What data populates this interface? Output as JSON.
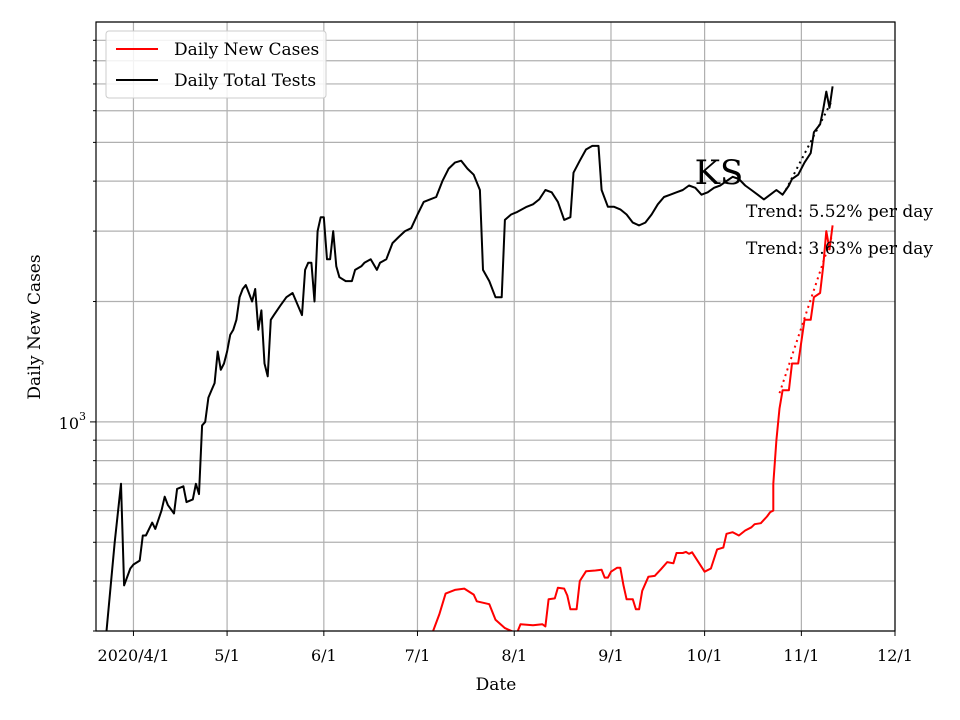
{
  "chart_data": {
    "type": "line",
    "title": "",
    "xlabel": "Date",
    "ylabel": "Daily New Cases",
    "y_scale": "log",
    "ylim": [
      300,
      10000
    ],
    "xlim": [
      "2020-03-20",
      "2020-12-01"
    ],
    "grid": true,
    "legend_position": "upper left",
    "x_tick_labels": [
      {
        "date": "2020-04-01",
        "label": "2020/4/1"
      },
      {
        "date": "2020-05-01",
        "label": "5/1"
      },
      {
        "date": "2020-06-01",
        "label": "6/1"
      },
      {
        "date": "2020-07-01",
        "label": "7/1"
      },
      {
        "date": "2020-08-01",
        "label": "8/1"
      },
      {
        "date": "2020-09-01",
        "label": "9/1"
      },
      {
        "date": "2020-10-01",
        "label": "10/1"
      },
      {
        "date": "2020-11-01",
        "label": "11/1"
      },
      {
        "date": "2020-12-01",
        "label": "12/1"
      }
    ],
    "y_major_tick": {
      "value": 1000,
      "label_base": "10",
      "label_exp": "3"
    },
    "series": [
      {
        "name": "Daily New Cases",
        "color": "#ff0000",
        "points": [
          [
            "2020-07-06",
            300
          ],
          [
            "2020-07-08",
            330
          ],
          [
            "2020-07-10",
            372
          ],
          [
            "2020-07-13",
            380
          ],
          [
            "2020-07-16",
            383
          ],
          [
            "2020-07-19",
            370
          ],
          [
            "2020-07-20",
            356
          ],
          [
            "2020-07-24",
            350
          ],
          [
            "2020-07-26",
            320
          ],
          [
            "2020-07-29",
            305
          ],
          [
            "2020-08-01",
            298
          ],
          [
            "2020-08-02",
            298
          ],
          [
            "2020-08-03",
            312
          ],
          [
            "2020-08-07",
            310
          ],
          [
            "2020-08-10",
            312
          ],
          [
            "2020-08-11",
            308
          ],
          [
            "2020-08-12",
            360
          ],
          [
            "2020-08-14",
            362
          ],
          [
            "2020-08-15",
            385
          ],
          [
            "2020-08-17",
            383
          ],
          [
            "2020-08-18",
            368
          ],
          [
            "2020-08-19",
            340
          ],
          [
            "2020-08-21",
            340
          ],
          [
            "2020-08-22",
            400
          ],
          [
            "2020-08-24",
            423
          ],
          [
            "2020-08-27",
            425
          ],
          [
            "2020-08-29",
            427
          ],
          [
            "2020-08-30",
            408
          ],
          [
            "2020-08-31",
            408
          ],
          [
            "2020-09-01",
            422
          ],
          [
            "2020-09-03",
            432
          ],
          [
            "2020-09-04",
            432
          ],
          [
            "2020-09-05",
            390
          ],
          [
            "2020-09-06",
            360
          ],
          [
            "2020-09-08",
            360
          ],
          [
            "2020-09-09",
            340
          ],
          [
            "2020-09-10",
            340
          ],
          [
            "2020-09-11",
            378
          ],
          [
            "2020-09-13",
            410
          ],
          [
            "2020-09-15",
            412
          ],
          [
            "2020-09-17",
            428
          ],
          [
            "2020-09-19",
            446
          ],
          [
            "2020-09-21",
            443
          ],
          [
            "2020-09-22",
            470
          ],
          [
            "2020-09-24",
            470
          ],
          [
            "2020-09-25",
            473
          ],
          [
            "2020-09-26",
            468
          ],
          [
            "2020-09-27",
            472
          ],
          [
            "2020-10-01",
            422
          ],
          [
            "2020-10-03",
            430
          ],
          [
            "2020-10-05",
            480
          ],
          [
            "2020-10-07",
            485
          ],
          [
            "2020-10-08",
            525
          ],
          [
            "2020-10-10",
            530
          ],
          [
            "2020-10-12",
            520
          ],
          [
            "2020-10-14",
            535
          ],
          [
            "2020-10-16",
            545
          ],
          [
            "2020-10-17",
            555
          ],
          [
            "2020-10-19",
            558
          ],
          [
            "2020-10-21",
            580
          ],
          [
            "2020-10-22",
            595
          ],
          [
            "2020-10-23",
            600
          ],
          [
            "2020-10-23",
            700
          ],
          [
            "2020-10-24",
            900
          ],
          [
            "2020-10-25",
            1080
          ],
          [
            "2020-10-26",
            1200
          ],
          [
            "2020-10-28",
            1200
          ],
          [
            "2020-10-29",
            1400
          ],
          [
            "2020-10-31",
            1400
          ],
          [
            "2020-11-02",
            1800
          ],
          [
            "2020-11-04",
            1800
          ],
          [
            "2020-11-05",
            2050
          ],
          [
            "2020-11-07",
            2100
          ],
          [
            "2020-11-08",
            2450
          ],
          [
            "2020-11-09",
            3000
          ],
          [
            "2020-11-10",
            2700
          ],
          [
            "2020-11-11",
            3100
          ]
        ]
      },
      {
        "name": "Daily Total Tests",
        "color": "#000000",
        "points": [
          [
            "2020-03-23",
            280
          ],
          [
            "2020-03-26",
            500
          ],
          [
            "2020-03-28",
            700
          ],
          [
            "2020-03-29",
            390
          ],
          [
            "2020-03-31",
            430
          ],
          [
            "2020-04-01",
            440
          ],
          [
            "2020-04-03",
            450
          ],
          [
            "2020-04-04",
            520
          ],
          [
            "2020-04-05",
            520
          ],
          [
            "2020-04-07",
            560
          ],
          [
            "2020-04-08",
            540
          ],
          [
            "2020-04-10",
            600
          ],
          [
            "2020-04-11",
            650
          ],
          [
            "2020-04-12",
            620
          ],
          [
            "2020-04-14",
            590
          ],
          [
            "2020-04-15",
            680
          ],
          [
            "2020-04-17",
            690
          ],
          [
            "2020-04-18",
            630
          ],
          [
            "2020-04-20",
            640
          ],
          [
            "2020-04-21",
            700
          ],
          [
            "2020-04-22",
            660
          ],
          [
            "2020-04-23",
            980
          ],
          [
            "2020-04-24",
            1000
          ],
          [
            "2020-04-25",
            1150
          ],
          [
            "2020-04-26",
            1200
          ],
          [
            "2020-04-27",
            1250
          ],
          [
            "2020-04-28",
            1500
          ],
          [
            "2020-04-29",
            1350
          ],
          [
            "2020-04-30",
            1400
          ],
          [
            "2020-05-01",
            1500
          ],
          [
            "2020-05-02",
            1650
          ],
          [
            "2020-05-03",
            1700
          ],
          [
            "2020-05-04",
            1800
          ],
          [
            "2020-05-05",
            2050
          ],
          [
            "2020-05-06",
            2150
          ],
          [
            "2020-05-07",
            2200
          ],
          [
            "2020-05-08",
            2100
          ],
          [
            "2020-05-09",
            2000
          ],
          [
            "2020-05-10",
            2150
          ],
          [
            "2020-05-11",
            1700
          ],
          [
            "2020-05-12",
            1900
          ],
          [
            "2020-05-13",
            1400
          ],
          [
            "2020-05-14",
            1300
          ],
          [
            "2020-05-15",
            1800
          ],
          [
            "2020-05-16",
            1850
          ],
          [
            "2020-05-18",
            1950
          ],
          [
            "2020-05-20",
            2050
          ],
          [
            "2020-05-22",
            2100
          ],
          [
            "2020-05-25",
            1850
          ],
          [
            "2020-05-26",
            2400
          ],
          [
            "2020-05-27",
            2500
          ],
          [
            "2020-05-28",
            2500
          ],
          [
            "2020-05-29",
            2000
          ],
          [
            "2020-05-30",
            3000
          ],
          [
            "2020-05-31",
            3250
          ],
          [
            "2020-06-01",
            3250
          ],
          [
            "2020-06-02",
            2550
          ],
          [
            "2020-06-03",
            2550
          ],
          [
            "2020-06-04",
            3000
          ],
          [
            "2020-06-05",
            2450
          ],
          [
            "2020-06-06",
            2300
          ],
          [
            "2020-06-08",
            2250
          ],
          [
            "2020-06-10",
            2250
          ],
          [
            "2020-06-11",
            2400
          ],
          [
            "2020-06-13",
            2450
          ],
          [
            "2020-06-14",
            2500
          ],
          [
            "2020-06-16",
            2550
          ],
          [
            "2020-06-18",
            2400
          ],
          [
            "2020-06-19",
            2500
          ],
          [
            "2020-06-21",
            2550
          ],
          [
            "2020-06-23",
            2800
          ],
          [
            "2020-06-25",
            2900
          ],
          [
            "2020-06-27",
            3000
          ],
          [
            "2020-06-29",
            3050
          ],
          [
            "2020-07-01",
            3300
          ],
          [
            "2020-07-03",
            3550
          ],
          [
            "2020-07-05",
            3600
          ],
          [
            "2020-07-07",
            3650
          ],
          [
            "2020-07-09",
            4000
          ],
          [
            "2020-07-11",
            4300
          ],
          [
            "2020-07-13",
            4450
          ],
          [
            "2020-07-15",
            4500
          ],
          [
            "2020-07-17",
            4300
          ],
          [
            "2020-07-19",
            4150
          ],
          [
            "2020-07-21",
            3800
          ],
          [
            "2020-07-22",
            2400
          ],
          [
            "2020-07-24",
            2250
          ],
          [
            "2020-07-26",
            2050
          ],
          [
            "2020-07-28",
            2050
          ],
          [
            "2020-07-29",
            3200
          ],
          [
            "2020-07-31",
            3300
          ],
          [
            "2020-08-02",
            3350
          ],
          [
            "2020-08-05",
            3450
          ],
          [
            "2020-08-07",
            3500
          ],
          [
            "2020-08-09",
            3600
          ],
          [
            "2020-08-11",
            3800
          ],
          [
            "2020-08-13",
            3750
          ],
          [
            "2020-08-15",
            3550
          ],
          [
            "2020-08-17",
            3200
          ],
          [
            "2020-08-19",
            3250
          ],
          [
            "2020-08-20",
            4200
          ],
          [
            "2020-08-22",
            4500
          ],
          [
            "2020-08-24",
            4800
          ],
          [
            "2020-08-26",
            4900
          ],
          [
            "2020-08-28",
            4900
          ],
          [
            "2020-08-29",
            3800
          ],
          [
            "2020-08-31",
            3450
          ],
          [
            "2020-09-02",
            3450
          ],
          [
            "2020-09-04",
            3400
          ],
          [
            "2020-09-06",
            3300
          ],
          [
            "2020-09-08",
            3150
          ],
          [
            "2020-09-10",
            3100
          ],
          [
            "2020-09-12",
            3150
          ],
          [
            "2020-09-14",
            3300
          ],
          [
            "2020-09-16",
            3500
          ],
          [
            "2020-09-18",
            3650
          ],
          [
            "2020-09-20",
            3700
          ],
          [
            "2020-09-22",
            3750
          ],
          [
            "2020-09-24",
            3800
          ],
          [
            "2020-09-26",
            3900
          ],
          [
            "2020-09-28",
            3850
          ],
          [
            "2020-09-30",
            3700
          ],
          [
            "2020-10-02",
            3750
          ],
          [
            "2020-10-04",
            3850
          ],
          [
            "2020-10-06",
            3900
          ],
          [
            "2020-10-08",
            4000
          ],
          [
            "2020-10-10",
            4100
          ],
          [
            "2020-10-12",
            4050
          ],
          [
            "2020-10-14",
            3900
          ],
          [
            "2020-10-16",
            3800
          ],
          [
            "2020-10-18",
            3700
          ],
          [
            "2020-10-20",
            3600
          ],
          [
            "2020-10-22",
            3700
          ],
          [
            "2020-10-24",
            3800
          ],
          [
            "2020-10-26",
            3700
          ],
          [
            "2020-10-28",
            3900
          ],
          [
            "2020-10-29",
            4050
          ],
          [
            "2020-10-31",
            4150
          ],
          [
            "2020-11-02",
            4450
          ],
          [
            "2020-11-04",
            4700
          ],
          [
            "2020-11-05",
            5300
          ],
          [
            "2020-11-07",
            5550
          ],
          [
            "2020-11-08",
            6050
          ],
          [
            "2020-11-09",
            6700
          ],
          [
            "2020-11-10",
            6100
          ],
          [
            "2020-11-11",
            6900
          ]
        ]
      }
    ],
    "trend_lines": [
      {
        "color": "#000000",
        "start": [
          "2020-10-27",
          3800
        ],
        "end": [
          "2020-11-11",
          6400
        ]
      },
      {
        "color": "#ff0000",
        "start": [
          "2020-10-25",
          1180
        ],
        "end": [
          "2020-11-11",
          2950
        ]
      }
    ],
    "annotations": [
      "KS",
      "Trend: 5.52% per day",
      "Trend: 3.63% per day"
    ]
  }
}
